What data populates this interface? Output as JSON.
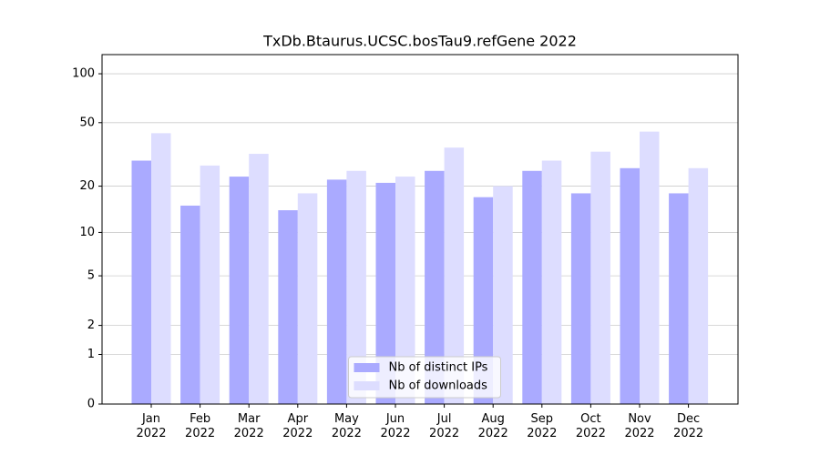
{
  "chart_data": {
    "type": "bar",
    "title": "TxDb.Btaurus.UCSC.bosTau9.refGene 2022",
    "categories": [
      "Jan\n2022",
      "Feb\n2022",
      "Mar\n2022",
      "Apr\n2022",
      "May\n2022",
      "Jun\n2022",
      "Jul\n2022",
      "Aug\n2022",
      "Sep\n2022",
      "Oct\n2022",
      "Nov\n2022",
      "Dec\n2022"
    ],
    "series": [
      {
        "name": "Nb of distinct IPs",
        "color": "#aaaaff",
        "values": [
          29,
          15,
          23,
          14,
          22,
          21,
          25,
          17,
          25,
          18,
          26,
          18
        ]
      },
      {
        "name": "Nb of downloads",
        "color": "#ddddff",
        "values": [
          43,
          27,
          32,
          18,
          25,
          23,
          35,
          20,
          29,
          33,
          44,
          26
        ]
      }
    ],
    "yscale": "log1p",
    "ylim": [
      0,
      131
    ],
    "yticks": [
      0,
      1,
      2,
      5,
      10,
      20,
      50,
      100
    ],
    "grid": true,
    "legend": "lower center"
  }
}
